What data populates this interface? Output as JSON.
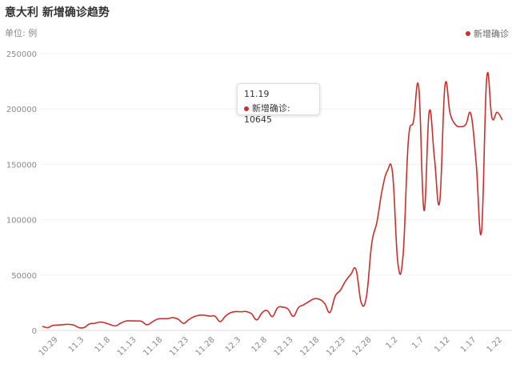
{
  "chart_data": {
    "type": "line",
    "title": "意大利 新增确诊趋势",
    "subtitle": "单位: 例",
    "categories": [
      null,
      null,
      null,
      "10.29",
      null,
      null,
      null,
      null,
      "11.3",
      null,
      null,
      null,
      null,
      "11.8",
      null,
      null,
      null,
      null,
      "11.13",
      null,
      null,
      null,
      null,
      "11.18",
      null,
      null,
      null,
      null,
      "11.23",
      null,
      null,
      null,
      null,
      "11.28",
      null,
      null,
      null,
      null,
      "12.3",
      null,
      null,
      null,
      null,
      "12.8",
      null,
      null,
      null,
      null,
      "12.13",
      null,
      null,
      null,
      null,
      "12.18",
      null,
      null,
      null,
      null,
      "12.23",
      null,
      null,
      null,
      null,
      "12.28",
      null,
      null,
      null,
      null,
      "1.2",
      null,
      null,
      null,
      null,
      "1.7",
      null,
      null,
      null,
      null,
      "1.12",
      null,
      null,
      null,
      null,
      "1.17",
      null,
      null,
      null,
      null,
      "1.22"
    ],
    "series": [
      {
        "name": "新增确诊",
        "color": "#c9302c",
        "values": [
          3700,
          2500,
          4500,
          4800,
          5200,
          5500,
          4800,
          2500,
          2600,
          5900,
          6400,
          7500,
          6800,
          5200,
          4100,
          6600,
          8500,
          8600,
          8500,
          8100,
          5100,
          7600,
          10200,
          10600,
          10645,
          11500,
          10000,
          6400,
          9700,
          12400,
          13700,
          13700,
          12900,
          12900,
          7900,
          12800,
          16000,
          17000,
          16800,
          17000,
          15000,
          9500,
          15800,
          17900,
          12500,
          20400,
          21000,
          19200,
          12700,
          20700,
          23200,
          26100,
          28600,
          28100,
          24300,
          16200,
          30800,
          36300,
          44600,
          50600,
          54800,
          24900,
          30800,
          78300,
          98000,
          126900,
          144200,
          141300,
          61000,
          68000,
          170800,
          189100,
          219400,
          108300,
          197600,
          155700,
          116000,
          220500,
          196000,
          186000,
          184000,
          186000,
          195000,
          150000,
          89000,
          228000,
          192000,
          197000,
          190000
        ]
      }
    ],
    "ylim": [
      0,
      250000
    ],
    "yticks": [
      0,
      50000,
      100000,
      150000,
      200000,
      250000
    ],
    "grid": true,
    "tooltip": {
      "category": "11.19"
    }
  }
}
